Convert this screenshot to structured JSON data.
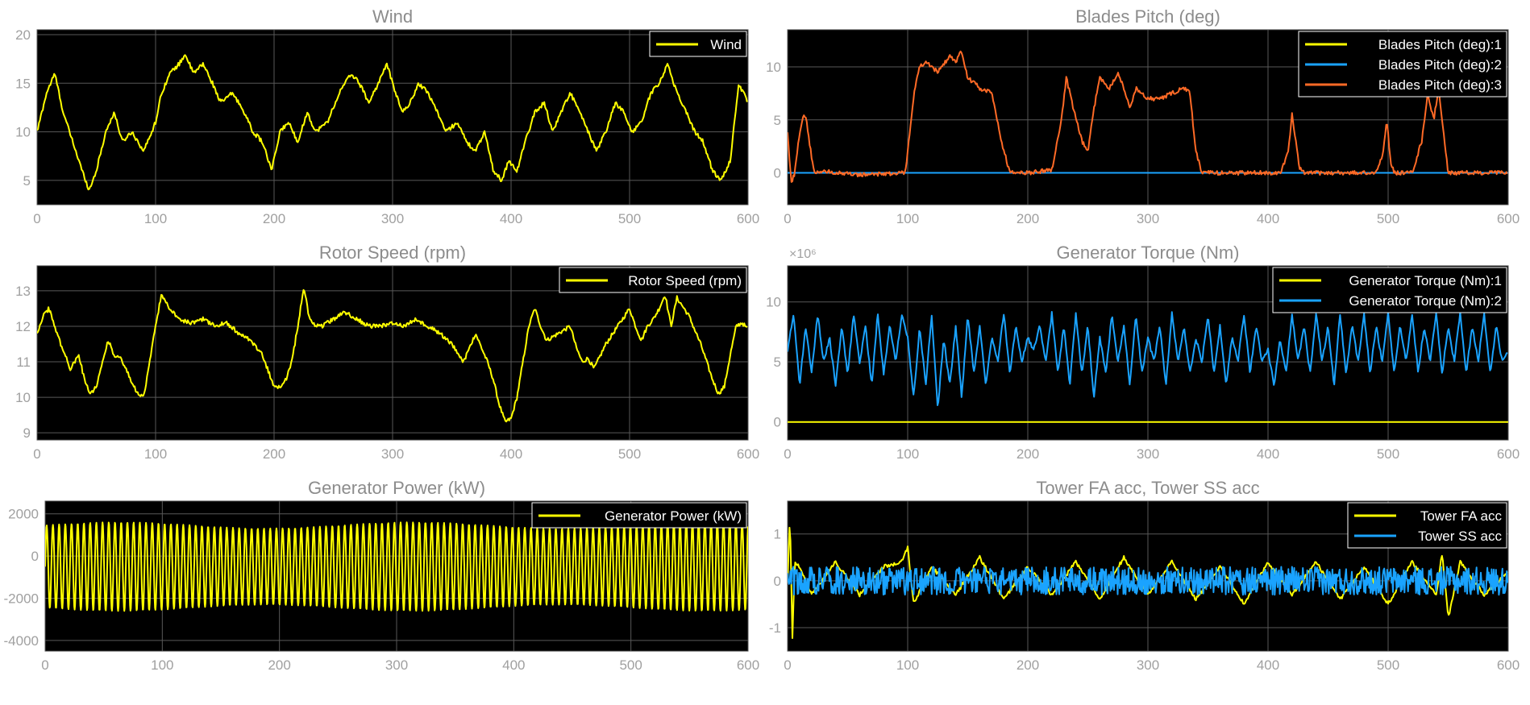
{
  "colors": {
    "figure_bg": "#ffffff",
    "axes_bg": "#000000",
    "grid": "#595959",
    "yellow": "#ffff00",
    "blue": "#1aa3ff",
    "orange": "#ff6a26",
    "text": "#a0a0a0"
  },
  "chart_data": [
    {
      "type": "line",
      "title": "Wind",
      "xlim": [
        0,
        600
      ],
      "ylim": [
        2.5,
        20.5
      ],
      "xticks": [
        0,
        100,
        200,
        300,
        400,
        500,
        600
      ],
      "yticks": [
        5,
        10,
        15,
        20
      ],
      "grid": true,
      "legend_position": "top-right",
      "series": [
        {
          "name": "Wind",
          "color": "#ffff00",
          "x": [
            0,
            8,
            15,
            22,
            30,
            38,
            44,
            50,
            58,
            65,
            72,
            80,
            90,
            100,
            105,
            112,
            120,
            125,
            132,
            140,
            148,
            155,
            165,
            175,
            182,
            190,
            198,
            205,
            212,
            220,
            228,
            235,
            245,
            255,
            265,
            272,
            280,
            288,
            295,
            300,
            308,
            315,
            322,
            330,
            338,
            345,
            355,
            362,
            370,
            378,
            385,
            392,
            398,
            405,
            412,
            420,
            428,
            435,
            442,
            450,
            458,
            465,
            472,
            480,
            488,
            495,
            502,
            510,
            518,
            525,
            532,
            540,
            548,
            555,
            562,
            570,
            577,
            585,
            592,
            600
          ],
          "y": [
            10,
            14,
            16,
            12,
            9,
            6,
            4,
            6,
            10,
            12,
            9,
            10,
            8,
            11,
            14,
            16,
            17,
            18,
            16,
            17,
            15,
            13,
            14,
            12,
            10,
            9,
            6,
            10,
            11,
            9,
            12,
            10,
            11,
            14,
            16,
            15,
            13,
            15,
            17,
            15,
            12,
            13,
            15,
            14,
            12,
            10,
            11,
            9,
            8,
            10,
            6,
            5,
            7,
            6,
            9,
            12,
            13,
            10,
            12,
            14,
            12,
            10,
            8,
            10,
            13,
            12,
            10,
            11,
            14,
            15,
            17,
            14,
            12,
            10,
            9,
            6,
            5,
            7,
            15,
            13
          ]
        }
      ]
    },
    {
      "type": "line",
      "title": "Blades Pitch (deg)",
      "xlim": [
        0,
        600
      ],
      "ylim": [
        -3,
        13.5
      ],
      "xticks": [
        0,
        100,
        200,
        300,
        400,
        500,
        600
      ],
      "yticks": [
        0,
        5,
        10
      ],
      "grid": true,
      "legend_position": "top-right",
      "series": [
        {
          "name": "Blades Pitch (deg):1",
          "color": "#ffff00",
          "x": [
            0,
            600
          ],
          "y": [
            0,
            0
          ]
        },
        {
          "name": "Blades Pitch (deg):2",
          "color": "#1aa3ff",
          "x": [
            0,
            600
          ],
          "y": [
            0,
            0
          ]
        },
        {
          "name": "Blades Pitch (deg):3",
          "color": "#ff6a26",
          "x": [
            0,
            3,
            6,
            9,
            12,
            15,
            18,
            22,
            30,
            60,
            98,
            102,
            106,
            110,
            115,
            125,
            135,
            140,
            145,
            150,
            160,
            170,
            178,
            185,
            200,
            220,
            228,
            232,
            238,
            245,
            250,
            255,
            260,
            268,
            275,
            280,
            285,
            290,
            300,
            310,
            320,
            330,
            335,
            340,
            345,
            380,
            410,
            417,
            420,
            423,
            426,
            430,
            440,
            490,
            496,
            499,
            502,
            505,
            510,
            520,
            528,
            533,
            538,
            542,
            546,
            550,
            560,
            580,
            600
          ],
          "y": [
            4,
            -1,
            0,
            3,
            5,
            5.5,
            3,
            0,
            0.2,
            -0.2,
            0,
            4,
            8,
            10,
            10.5,
            9.5,
            11,
            10.5,
            11.5,
            9,
            8,
            7.5,
            3,
            0,
            0,
            0.3,
            5,
            9,
            6,
            3,
            2,
            6,
            9,
            8,
            9.5,
            8,
            6,
            8,
            7,
            7,
            7.5,
            8,
            7.5,
            2,
            0,
            0,
            0,
            2,
            5.5,
            3,
            0.5,
            0,
            0,
            0,
            2,
            5,
            1,
            0,
            0,
            0,
            3,
            7.5,
            5,
            8,
            4,
            0,
            0,
            0,
            0
          ]
        }
      ]
    },
    {
      "type": "line",
      "title": "Rotor Speed (rpm)",
      "xlim": [
        0,
        600
      ],
      "ylim": [
        8.8,
        13.7
      ],
      "xticks": [
        0,
        100,
        200,
        300,
        400,
        500,
        600
      ],
      "yticks": [
        9,
        10,
        11,
        12,
        13
      ],
      "grid": true,
      "legend_position": "top-right",
      "series": [
        {
          "name": "Rotor Speed (rpm)",
          "color": "#ffff00",
          "x": [
            0,
            5,
            10,
            15,
            20,
            28,
            35,
            40,
            45,
            50,
            55,
            60,
            65,
            70,
            75,
            80,
            85,
            90,
            95,
            100,
            105,
            110,
            120,
            130,
            140,
            150,
            160,
            170,
            180,
            190,
            200,
            205,
            210,
            215,
            220,
            225,
            230,
            235,
            240,
            250,
            260,
            270,
            280,
            290,
            300,
            310,
            320,
            330,
            340,
            350,
            360,
            370,
            380,
            385,
            390,
            395,
            400,
            405,
            410,
            415,
            420,
            425,
            430,
            440,
            450,
            455,
            460,
            465,
            470,
            480,
            490,
            500,
            505,
            510,
            515,
            520,
            525,
            530,
            535,
            540,
            550,
            560,
            570,
            575,
            580,
            585,
            590,
            595,
            600
          ],
          "y": [
            11.8,
            12.3,
            12.5,
            12,
            11.5,
            10.8,
            11.2,
            10.5,
            10.1,
            10.3,
            11,
            11.6,
            11.2,
            11.1,
            10.8,
            10.4,
            10.1,
            10.0,
            11,
            12,
            12.9,
            12.6,
            12.2,
            12.1,
            12.2,
            12.0,
            12.1,
            11.8,
            11.6,
            11.2,
            10.3,
            10.3,
            10.5,
            11,
            12,
            13.1,
            12.2,
            12.0,
            12.0,
            12.2,
            12.4,
            12.2,
            12.0,
            12.0,
            12.1,
            12.0,
            12.2,
            12.0,
            11.8,
            11.5,
            11.0,
            11.8,
            11.0,
            10.5,
            9.8,
            9.3,
            9.4,
            10.0,
            11.0,
            12.0,
            12.5,
            12.0,
            11.6,
            11.8,
            12.0,
            11.4,
            11.0,
            11.1,
            10.8,
            11.5,
            12.0,
            12.5,
            12.0,
            11.6,
            12.0,
            12.2,
            12.5,
            12.9,
            12.0,
            12.8,
            12.3,
            11.5,
            10.5,
            10.1,
            10.3,
            11.2,
            12.0,
            12.1,
            11.9
          ]
        }
      ]
    },
    {
      "type": "line",
      "title": "Generator Torque (Nm)",
      "xlim": [
        0,
        600
      ],
      "ylim": [
        -1.5,
        13
      ],
      "xticks": [
        0,
        100,
        200,
        300,
        400,
        500,
        600
      ],
      "yticks": [
        0,
        5,
        10
      ],
      "y_exponent": "×10⁶",
      "grid": true,
      "legend_position": "top-right",
      "series": [
        {
          "name": "Generator Torque (Nm):1",
          "color": "#ffff00",
          "x": [
            0,
            600
          ],
          "y": [
            0,
            0
          ]
        },
        {
          "name": "Generator Torque (Nm):2",
          "color": "#1aa3ff",
          "x": [
            0,
            5,
            10,
            15,
            20,
            25,
            30,
            35,
            40,
            45,
            50,
            55,
            60,
            65,
            70,
            75,
            80,
            85,
            90,
            95,
            100,
            105,
            110,
            115,
            120,
            125,
            130,
            135,
            140,
            145,
            150,
            155,
            160,
            165,
            170,
            175,
            180,
            185,
            190,
            195,
            200,
            205,
            210,
            215,
            220,
            225,
            230,
            235,
            240,
            245,
            250,
            255,
            260,
            265,
            270,
            275,
            280,
            285,
            290,
            295,
            300,
            305,
            310,
            315,
            320,
            325,
            330,
            335,
            340,
            345,
            350,
            355,
            360,
            365,
            370,
            375,
            380,
            385,
            390,
            395,
            400,
            405,
            410,
            415,
            420,
            425,
            430,
            435,
            440,
            445,
            450,
            455,
            460,
            465,
            470,
            475,
            480,
            485,
            490,
            495,
            500,
            505,
            510,
            515,
            520,
            525,
            530,
            535,
            540,
            545,
            550,
            555,
            560,
            565,
            570,
            575,
            580,
            585,
            590,
            595,
            600
          ],
          "y": [
            6,
            9,
            3,
            8,
            4,
            9,
            5,
            7,
            3,
            8,
            4,
            9,
            5,
            8,
            3,
            9,
            4,
            8,
            5,
            9,
            7,
            2,
            8,
            3,
            9,
            1,
            7,
            3,
            8,
            2,
            9,
            4,
            8,
            3,
            7,
            5,
            9,
            4,
            8,
            5,
            7,
            6,
            8,
            5,
            9,
            4,
            8,
            3,
            9,
            4,
            8,
            2,
            7,
            4,
            9,
            5,
            8,
            3,
            9,
            4,
            7,
            5,
            8,
            3,
            9,
            5,
            8,
            4,
            7,
            5,
            9,
            4,
            8,
            3,
            7,
            5,
            9,
            4,
            8,
            5,
            6,
            3,
            7,
            4,
            9,
            5,
            8,
            4,
            9,
            5,
            8,
            3,
            9,
            4,
            8,
            5,
            9,
            4,
            8,
            5,
            9,
            4,
            8,
            5,
            9,
            4,
            8,
            5,
            9,
            4,
            8,
            5,
            9,
            4,
            8,
            5,
            9,
            4,
            8,
            5,
            6
          ]
        }
      ]
    },
    {
      "type": "line",
      "title": "Generator Power (kW)",
      "xlim": [
        0,
        600
      ],
      "ylim": [
        -4500,
        2600
      ],
      "xticks": [
        0,
        100,
        200,
        300,
        400,
        500,
        600
      ],
      "yticks": [
        -4000,
        -2000,
        0,
        2000
      ],
      "grid": true,
      "legend_position": "top-right",
      "series": [
        {
          "name": "Generator Power (kW)",
          "color": "#ffff00",
          "oscillation": {
            "period": 5.3,
            "mean": -500,
            "amplitude": 2100
          },
          "x": [
            0,
            600
          ],
          "y": [
            -500,
            -500
          ]
        }
      ]
    },
    {
      "type": "line",
      "title": "Tower FA acc, Tower SS acc",
      "xlim": [
        0,
        600
      ],
      "ylim": [
        -1.5,
        1.7
      ],
      "xticks": [
        0,
        100,
        200,
        300,
        400,
        500,
        600
      ],
      "yticks": [
        -1,
        0,
        1
      ],
      "grid": true,
      "legend_position": "top-right",
      "series": [
        {
          "name": "Tower FA acc",
          "color": "#ffff00",
          "x": [
            0,
            2,
            4,
            6,
            10,
            20,
            40,
            60,
            80,
            95,
            100,
            105,
            120,
            140,
            160,
            180,
            200,
            220,
            240,
            260,
            280,
            300,
            320,
            340,
            360,
            380,
            400,
            420,
            440,
            460,
            480,
            500,
            520,
            540,
            545,
            550,
            560,
            580,
            600
          ],
          "y": [
            0,
            1.4,
            -1.2,
            0.4,
            0.3,
            -0.3,
            0.4,
            -0.3,
            0.3,
            0.4,
            0.7,
            -0.5,
            0.3,
            -0.3,
            0.5,
            -0.4,
            0.3,
            -0.3,
            0.4,
            -0.4,
            0.5,
            -0.3,
            0.4,
            -0.4,
            0.3,
            -0.5,
            0.4,
            -0.3,
            0.4,
            -0.4,
            0.3,
            -0.5,
            0.4,
            -0.3,
            0.6,
            -0.8,
            0.4,
            -0.3,
            0.2
          ]
        },
        {
          "name": "Tower SS acc",
          "color": "#1aa3ff",
          "x": [
            0,
            600
          ],
          "y": [
            0,
            0
          ],
          "noise_amplitude": 0.3
        }
      ]
    }
  ]
}
